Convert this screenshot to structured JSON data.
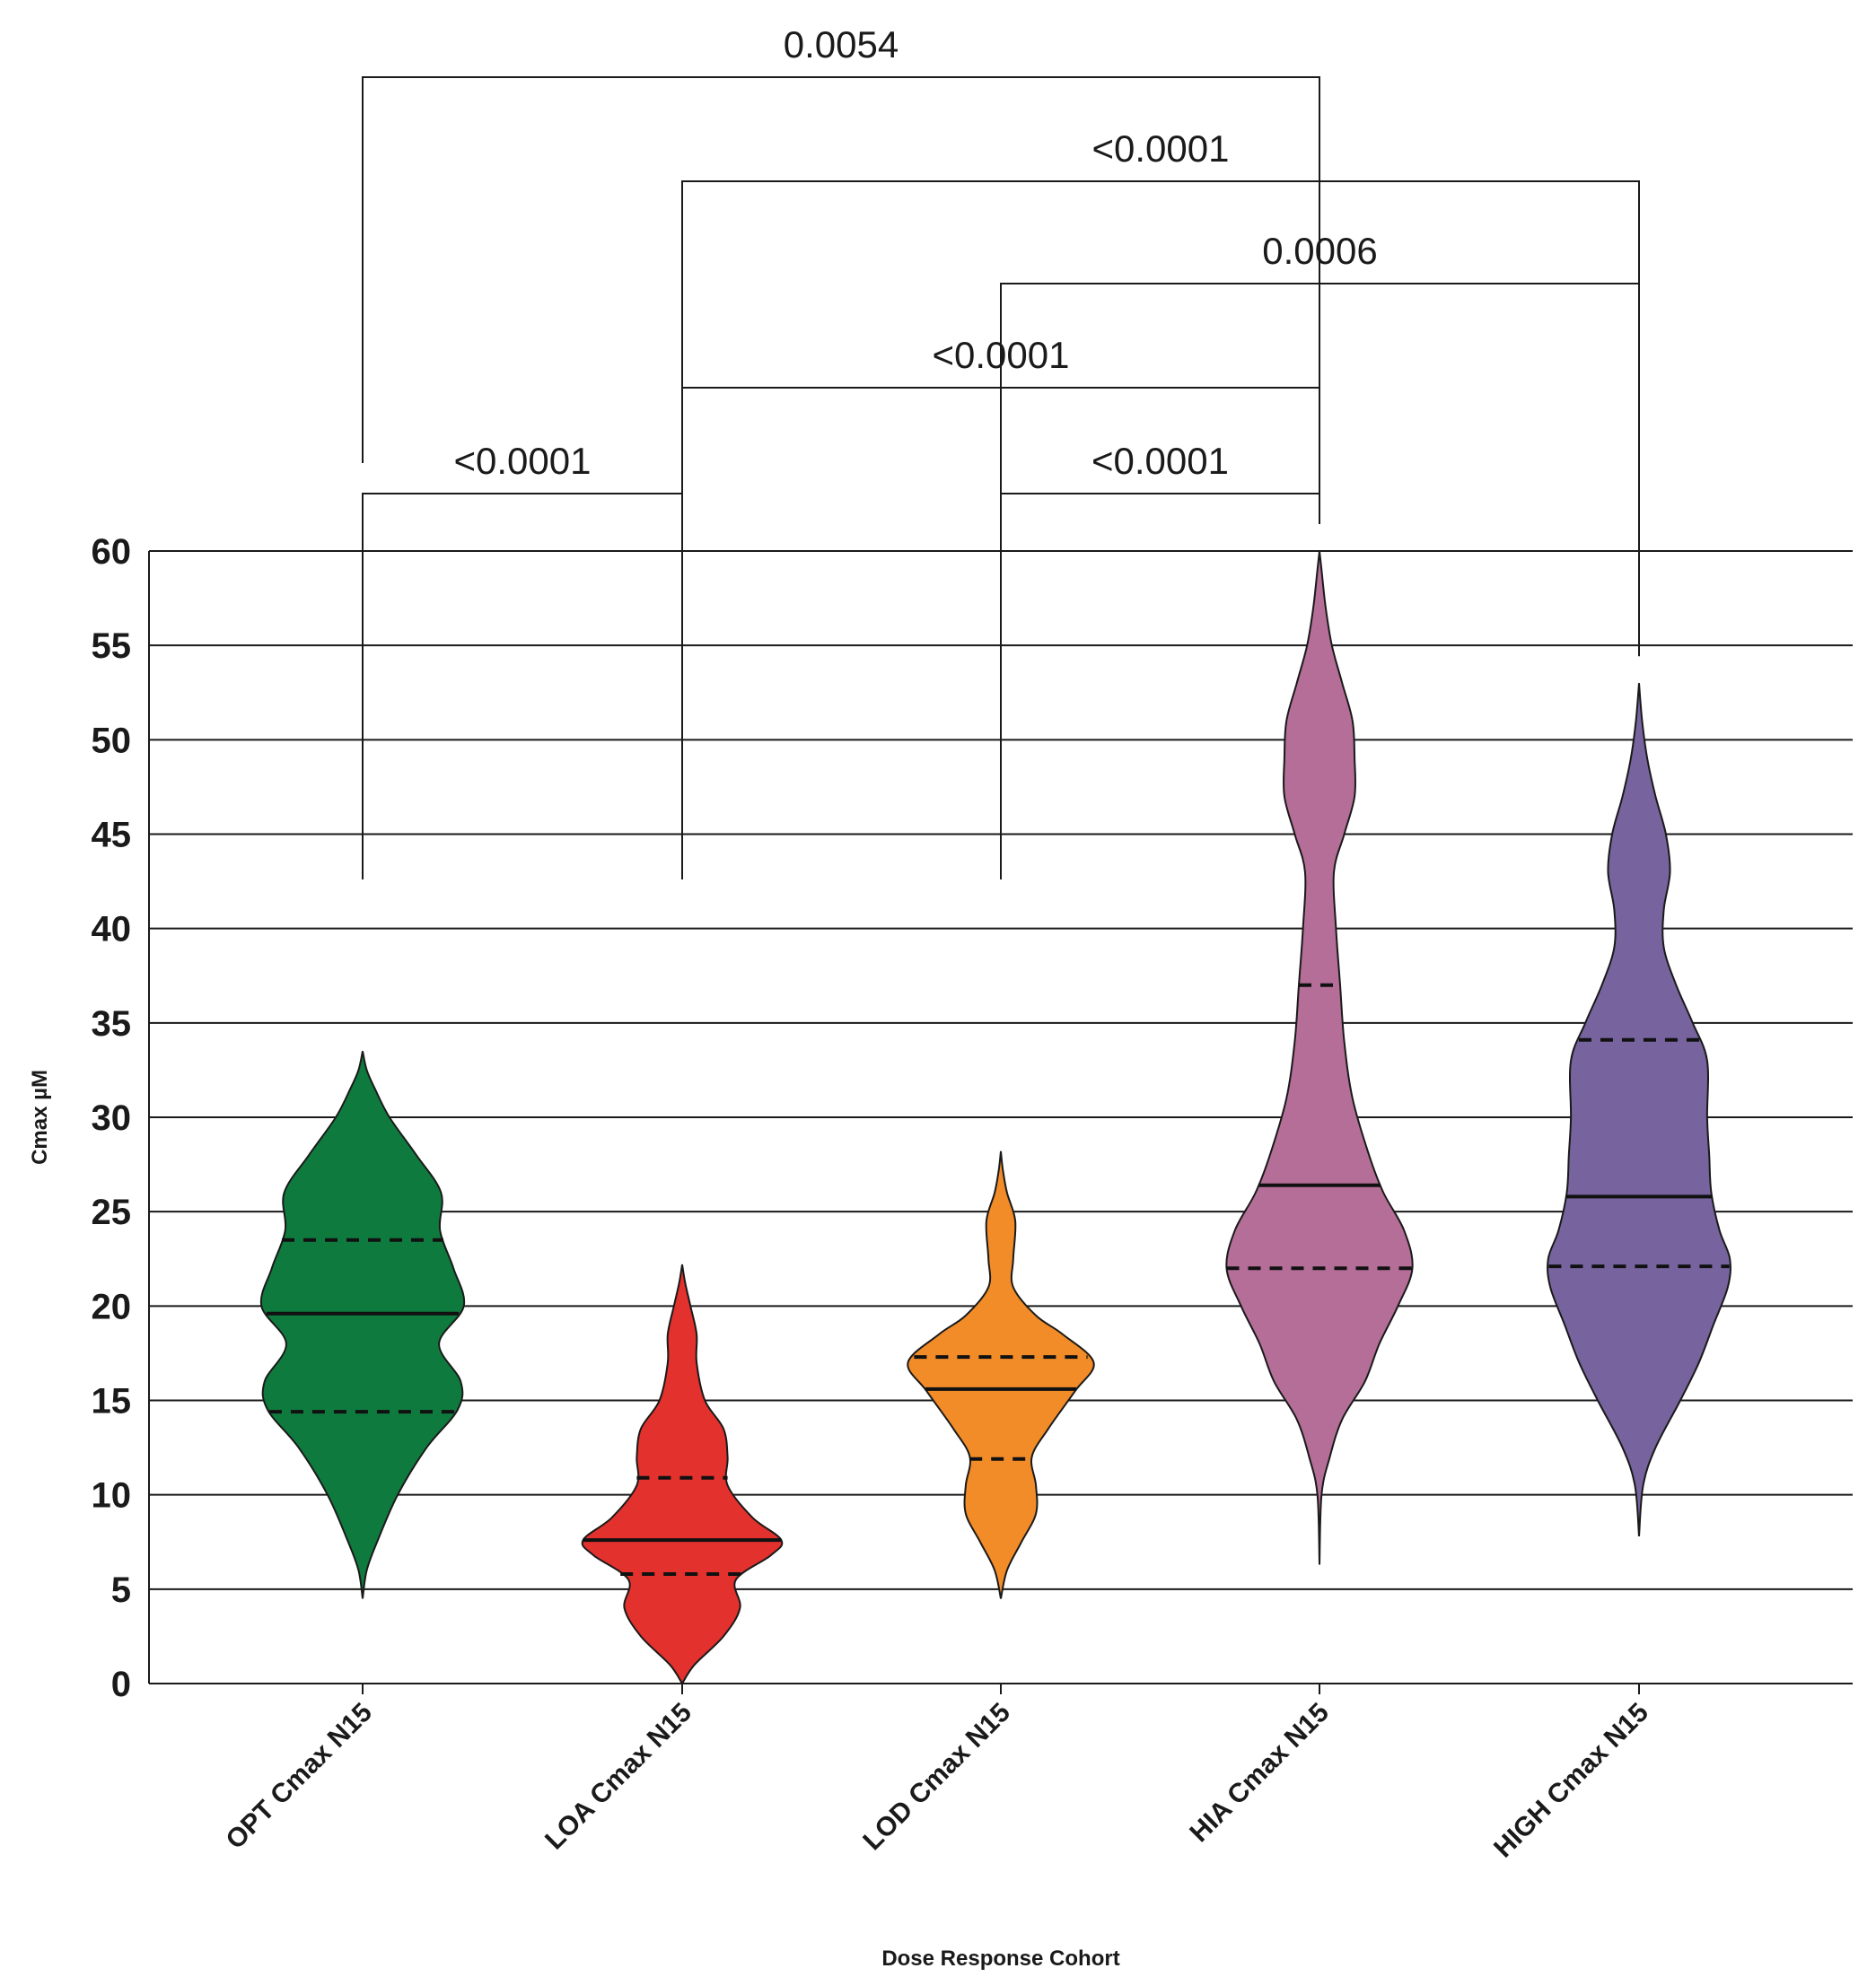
{
  "chart_data": {
    "type": "violin",
    "xlabel": "Dose Response Cohort",
    "ylabel": "Cmax µM",
    "ylim": [
      0,
      60
    ],
    "yticks": [
      0,
      5,
      10,
      15,
      20,
      25,
      30,
      35,
      40,
      45,
      50,
      55,
      60
    ],
    "grid": true,
    "categories": [
      "OPT Cmax N15",
      "LOA Cmax N15",
      "LOD Cmax N15",
      "HIA Cmax N15",
      "HIGH Cmax N15"
    ],
    "series": [
      {
        "category": "OPT Cmax N15",
        "color": "#0f7a3e",
        "min": 4.5,
        "max": 33.5,
        "q1": 14.4,
        "median": 19.6,
        "q3": 23.5,
        "shape": [
          [
            4.5,
            0
          ],
          [
            6,
            0.04
          ],
          [
            7.5,
            0.14
          ],
          [
            10,
            0.34
          ],
          [
            12.5,
            0.62
          ],
          [
            14.5,
            0.92
          ],
          [
            16,
            0.95
          ],
          [
            18,
            0.74
          ],
          [
            20,
            0.98
          ],
          [
            22,
            0.88
          ],
          [
            24,
            0.75
          ],
          [
            26,
            0.76
          ],
          [
            28,
            0.52
          ],
          [
            30,
            0.26
          ],
          [
            31.5,
            0.12
          ],
          [
            32.5,
            0.04
          ],
          [
            33.5,
            0
          ]
        ]
      },
      {
        "category": "LOA Cmax N15",
        "color": "#e3312d",
        "min": 0,
        "max": 22.2,
        "q1": 5.8,
        "median": 7.6,
        "q3": 10.9,
        "shape": [
          [
            0,
            0
          ],
          [
            1,
            0.12
          ],
          [
            2.5,
            0.4
          ],
          [
            4,
            0.56
          ],
          [
            5.5,
            0.52
          ],
          [
            6.8,
            0.86
          ],
          [
            7.6,
            0.96
          ],
          [
            8.8,
            0.68
          ],
          [
            10.5,
            0.44
          ],
          [
            12,
            0.44
          ],
          [
            13.5,
            0.4
          ],
          [
            15,
            0.22
          ],
          [
            17,
            0.14
          ],
          [
            18.5,
            0.14
          ],
          [
            20,
            0.08
          ],
          [
            21.2,
            0.03
          ],
          [
            22.2,
            0
          ]
        ]
      },
      {
        "category": "LOD Cmax N15",
        "color": "#f28c28",
        "min": 4.5,
        "max": 28.2,
        "q1": 11.9,
        "median": 15.6,
        "q3": 17.3,
        "shape": [
          [
            4.5,
            0
          ],
          [
            6,
            0.06
          ],
          [
            7.5,
            0.2
          ],
          [
            9,
            0.34
          ],
          [
            10.5,
            0.34
          ],
          [
            12,
            0.3
          ],
          [
            13.5,
            0.46
          ],
          [
            15.5,
            0.72
          ],
          [
            17,
            0.9
          ],
          [
            18.5,
            0.6
          ],
          [
            19.5,
            0.34
          ],
          [
            21,
            0.12
          ],
          [
            22.5,
            0.12
          ],
          [
            24.5,
            0.14
          ],
          [
            26,
            0.06
          ],
          [
            27.2,
            0.02
          ],
          [
            28.2,
            0
          ]
        ]
      },
      {
        "category": "HIA Cmax N15",
        "color": "#b46e97",
        "min": 6.3,
        "max": 60,
        "q1": 22.0,
        "median": 26.4,
        "q3": 37.0,
        "shape": [
          [
            6.3,
            0
          ],
          [
            10,
            0.02
          ],
          [
            12,
            0.1
          ],
          [
            14,
            0.22
          ],
          [
            16,
            0.44
          ],
          [
            18,
            0.58
          ],
          [
            20,
            0.76
          ],
          [
            22,
            0.9
          ],
          [
            24,
            0.82
          ],
          [
            26,
            0.62
          ],
          [
            28,
            0.48
          ],
          [
            31,
            0.32
          ],
          [
            34,
            0.24
          ],
          [
            37,
            0.2
          ],
          [
            40,
            0.16
          ],
          [
            43,
            0.14
          ],
          [
            45,
            0.24
          ],
          [
            47,
            0.34
          ],
          [
            49,
            0.34
          ],
          [
            51,
            0.32
          ],
          [
            53,
            0.22
          ],
          [
            55,
            0.12
          ],
          [
            57,
            0.06
          ],
          [
            59,
            0.02
          ],
          [
            60,
            0
          ]
        ]
      },
      {
        "category": "HIGH Cmax N15",
        "color": "#77639e",
        "min": 7.8,
        "max": 53.0,
        "q1": 22.1,
        "median": 25.8,
        "q3": 34.1,
        "shape": [
          [
            7.8,
            0
          ],
          [
            10.5,
            0.04
          ],
          [
            12.5,
            0.16
          ],
          [
            15,
            0.4
          ],
          [
            17,
            0.58
          ],
          [
            19,
            0.72
          ],
          [
            21,
            0.86
          ],
          [
            22.5,
            0.88
          ],
          [
            24,
            0.78
          ],
          [
            26,
            0.7
          ],
          [
            28,
            0.68
          ],
          [
            30,
            0.66
          ],
          [
            33,
            0.66
          ],
          [
            35,
            0.52
          ],
          [
            37,
            0.36
          ],
          [
            39,
            0.24
          ],
          [
            41,
            0.24
          ],
          [
            43,
            0.3
          ],
          [
            45,
            0.26
          ],
          [
            47,
            0.16
          ],
          [
            49,
            0.08
          ],
          [
            51,
            0.03
          ],
          [
            53,
            0
          ]
        ]
      }
    ],
    "comparisons": [
      {
        "from": "OPT Cmax N15",
        "to": "HIA Cmax N15",
        "p": "0.0054"
      },
      {
        "from": "LOA Cmax N15",
        "to": "HIGH Cmax N15",
        "p": "<0.0001"
      },
      {
        "from": "LOD Cmax N15",
        "to": "HIGH Cmax N15",
        "p": "0.0006"
      },
      {
        "from": "LOA Cmax N15",
        "to": "HIA Cmax N15",
        "p": "<0.0001"
      },
      {
        "from": "OPT Cmax N15",
        "to": "LOA Cmax N15",
        "p": "<0.0001"
      },
      {
        "from": "LOD Cmax N15",
        "to": "HIA Cmax N15",
        "p": "<0.0001"
      }
    ]
  }
}
